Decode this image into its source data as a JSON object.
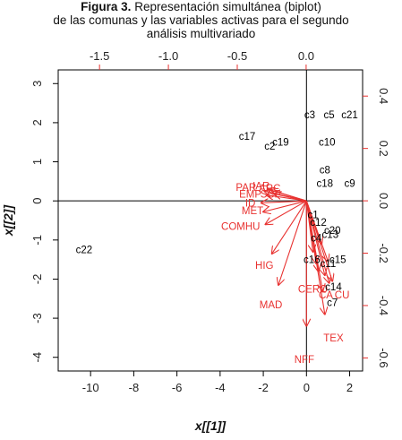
{
  "title": {
    "figure_label": "Figura 3.",
    "line1": "Representación simultánea (biplot)",
    "line2": "de las comunas y las variables activas para el segundo",
    "line3": "análisis multivariado"
  },
  "chart_data": {
    "type": "scatter",
    "subtype": "biplot",
    "xlabel": "x[[1]]",
    "ylabel": "x[[2]]",
    "xlim": [
      -11.5,
      2.6
    ],
    "ylim": [
      -4.35,
      3.35
    ],
    "xticks": [
      -10,
      -8,
      -6,
      -4,
      -2,
      0,
      2
    ],
    "yticks": [
      -4,
      -3,
      -2,
      -1,
      0,
      1,
      2,
      3
    ],
    "secondary_x": {
      "ticks": [
        -1.5,
        -1.0,
        -0.5,
        0.0
      ],
      "tick_labels": [
        "-1.5",
        "-1.0",
        "-0.5",
        "0.0"
      ],
      "lim": [
        -1.8,
        0.41
      ]
    },
    "secondary_y": {
      "ticks": [
        -0.6,
        -0.4,
        -0.2,
        0.0,
        0.2,
        0.4
      ],
      "tick_labels": [
        "-0.6",
        "-0.4",
        "-0.2",
        "0.0",
        "0.2",
        "0.4"
      ],
      "lim": [
        -0.65,
        0.5
      ]
    },
    "reference_lines": {
      "x": 0,
      "y": 0
    },
    "colors": {
      "points": "#000000",
      "arrows": "#e8312f",
      "axes": "#000000"
    },
    "points": [
      {
        "label": "c22",
        "x": -10.3,
        "y": -1.25
      },
      {
        "label": "c17",
        "x": -2.75,
        "y": 1.65
      },
      {
        "label": "c2",
        "x": -1.7,
        "y": 1.4
      },
      {
        "label": "c19",
        "x": -1.2,
        "y": 1.5
      },
      {
        "label": "c3",
        "x": 0.15,
        "y": 2.2
      },
      {
        "label": "c5",
        "x": 1.05,
        "y": 2.2
      },
      {
        "label": "c21",
        "x": 2.0,
        "y": 2.2
      },
      {
        "label": "c10",
        "x": 0.95,
        "y": 1.5
      },
      {
        "label": "c8",
        "x": 0.85,
        "y": 0.8
      },
      {
        "label": "c18",
        "x": 0.85,
        "y": 0.45
      },
      {
        "label": "c9",
        "x": 2.0,
        "y": 0.45
      },
      {
        "label": "c1",
        "x": 0.3,
        "y": -0.35
      },
      {
        "label": "c12",
        "x": 0.55,
        "y": -0.55
      },
      {
        "label": "c20",
        "x": 1.2,
        "y": -0.75
      },
      {
        "label": "c13",
        "x": 1.1,
        "y": -0.85
      },
      {
        "label": "c4",
        "x": 0.45,
        "y": -0.95
      },
      {
        "label": "c16",
        "x": 0.25,
        "y": -1.5
      },
      {
        "label": "c11",
        "x": 1.0,
        "y": -1.6
      },
      {
        "label": "c15",
        "x": 1.45,
        "y": -1.5
      },
      {
        "label": "c14",
        "x": 1.25,
        "y": -2.2
      },
      {
        "label": "c7",
        "x": 1.2,
        "y": -2.6
      }
    ],
    "arrows": [
      {
        "label": "PAR",
        "x2": -1.95,
        "y2": 0.25,
        "lx": -2.8,
        "ly": 0.35
      },
      {
        "label": "IAR",
        "x2": -1.8,
        "y2": 0.3,
        "lx": -2.1,
        "ly": 0.38
      },
      {
        "label": "ARC",
        "x2": -1.65,
        "y2": 0.28,
        "lx": -1.7,
        "ly": 0.33
      },
      {
        "label": "EMP",
        "x2": -1.85,
        "y2": 0.15,
        "lx": -2.6,
        "ly": 0.18
      },
      {
        "label": "SCP",
        "x2": -1.5,
        "y2": 0.18,
        "lx": -1.65,
        "ly": 0.18
      },
      {
        "label": "ID",
        "x2": -2.1,
        "y2": -0.05,
        "lx": -2.6,
        "ly": -0.05
      },
      {
        "label": "MET",
        "x2": -2.0,
        "y2": -0.28,
        "lx": -2.5,
        "ly": -0.25
      },
      {
        "label": "COMHU",
        "x2": -1.9,
        "y2": -0.6,
        "lx": -3.05,
        "ly": -0.65
      },
      {
        "label": "HIG",
        "x2": -1.6,
        "y2": -1.35,
        "lx": -1.95,
        "ly": -1.65
      },
      {
        "label": "MAD",
        "x2": -1.3,
        "y2": -2.15,
        "lx": -1.65,
        "ly": -2.65
      },
      {
        "label": "NFF",
        "x2": 0.0,
        "y2": -3.2,
        "lx": -0.1,
        "ly": -4.05
      },
      {
        "label": "TEX",
        "x2": 0.85,
        "y2": -2.9,
        "lx": 1.25,
        "ly": -3.5
      },
      {
        "label": "CERO",
        "x2": 0.55,
        "y2": -1.8,
        "lx": 0.3,
        "ly": -2.25
      },
      {
        "label": "CA",
        "x2": 0.75,
        "y2": -2.3,
        "lx": 0.9,
        "ly": -2.4
      },
      {
        "label": "CU",
        "x2": 1.05,
        "y2": -2.1,
        "lx": 1.65,
        "ly": -2.4
      },
      {
        "label": "",
        "x2": 0.85,
        "y2": -1.9,
        "lx": 0,
        "ly": 0
      },
      {
        "label": "",
        "x2": 1.2,
        "y2": -2.05,
        "lx": 0,
        "ly": 0
      },
      {
        "label": "",
        "x2": 0.45,
        "y2": -1.6,
        "lx": 0,
        "ly": 0
      },
      {
        "label": "",
        "x2": 1.0,
        "y2": -1.55,
        "lx": 0,
        "ly": 0
      },
      {
        "label": "",
        "x2": 0.3,
        "y2": -1.3,
        "lx": 0,
        "ly": 0
      },
      {
        "label": "",
        "x2": 0.7,
        "y2": -1.1,
        "lx": 0,
        "ly": 0
      }
    ]
  }
}
